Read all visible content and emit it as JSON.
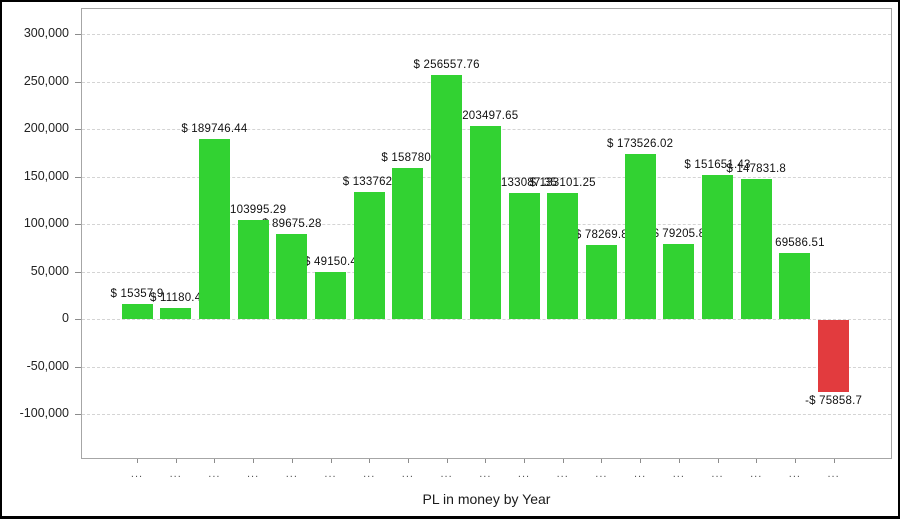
{
  "chart_data": {
    "type": "bar",
    "title": "PL in money by Year",
    "xlabel": "PL in money by Year",
    "ylabel": "",
    "grid": "horizontal-dashed",
    "legend": "none",
    "categories": [
      "...",
      "...",
      "...",
      "...",
      "...",
      "...",
      "...",
      "...",
      "...",
      "...",
      "...",
      "...",
      "...",
      "...",
      "...",
      "...",
      "...",
      "...",
      "..."
    ],
    "values": [
      15357.9,
      11180.4,
      189746.44,
      103995.29,
      89675.28,
      49150.4,
      133762,
      158780,
      256557.76,
      203497.65,
      133087.35,
      133101.25,
      78269.8,
      173526.02,
      79205.8,
      151651.43,
      147831.8,
      69586.51,
      -75858.7
    ],
    "bar_labels": [
      "$ 15357.9",
      "$ 11180.4",
      "$ 189746.44",
      "$ 103995.29",
      "$ 89675.28",
      "$ 49150.4",
      "$ 133762.",
      "$ 158780.",
      "$ 256557.76",
      "$ 203497.65",
      "$ 133087.35",
      "$ 133101.25",
      "$ 78269.8",
      "$ 173526.02",
      "$ 79205.8",
      "$ 151651.43",
      "$ 147831.8",
      "$ 69586.51",
      "-$ 75858.7"
    ],
    "y_axis": {
      "ylim": [
        -147000,
        327000
      ],
      "ticks": [
        {
          "value": 300000,
          "label": "300,000"
        },
        {
          "value": 250000,
          "label": "250,000"
        },
        {
          "value": 200000,
          "label": "200,000"
        },
        {
          "value": 150000,
          "label": "150,000"
        },
        {
          "value": 100000,
          "label": "100,000"
        },
        {
          "value": 50000,
          "label": "50,000"
        },
        {
          "value": 0,
          "label": "0"
        },
        {
          "value": -50000,
          "label": "-50,000"
        },
        {
          "value": -100000,
          "label": "-100,000"
        }
      ]
    },
    "colors": {
      "positive_bar": "#32d232",
      "negative_bar": "#e23b3e",
      "grid": "#d4d4d4",
      "plot_border": "#a6a6a6",
      "tick": "#8c8c8c",
      "value_label_text": "#111111",
      "axis_text": "#222222",
      "category_text": "#555555",
      "frame": "#000000",
      "background": "#ffffff"
    }
  }
}
